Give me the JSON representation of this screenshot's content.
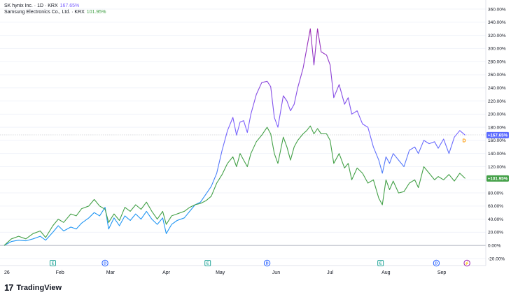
{
  "legend": {
    "sk_name": "SK hynix Inc. · 1D · KRX",
    "sk_value": "167.65%",
    "ss_name": "Samsung Electronics Co., Ltd. · KRX",
    "ss_value": "101.95%"
  },
  "brand": {
    "logo": "17",
    "name": "TradingView"
  },
  "colors": {
    "sk_top": "#9c27b0",
    "sk_bottom": "#2196f3",
    "samsung": "#43a047",
    "grid": "#f0f3fa"
  },
  "chart_data": {
    "type": "line",
    "x_labels": [
      {
        "label": "26",
        "day": 0
      },
      {
        "label": "Feb",
        "day": 31
      },
      {
        "label": "Mar",
        "day": 59
      },
      {
        "label": "Apr",
        "day": 90
      },
      {
        "label": "May",
        "day": 120
      },
      {
        "label": "Jun",
        "day": 151
      },
      {
        "label": "Jul",
        "day": 181
      },
      {
        "label": "Aug",
        "day": 212
      },
      {
        "label": "Sep",
        "day": 243
      }
    ],
    "events": [
      {
        "icon": "earnings-icon",
        "letter": "E",
        "day": 27,
        "color": "#26a69a"
      },
      {
        "icon": "dividend-icon",
        "letter": "D",
        "day": 56,
        "color": "#2962ff"
      },
      {
        "icon": "earnings-icon",
        "letter": "E",
        "day": 113,
        "color": "#26a69a"
      },
      {
        "icon": "dividend-icon",
        "letter": "D",
        "day": 146,
        "color": "#2962ff"
      },
      {
        "icon": "earnings-icon",
        "letter": "E",
        "day": 209,
        "color": "#26a69a"
      },
      {
        "icon": "dividend-icon",
        "letter": "D",
        "day": 240,
        "color": "#2962ff"
      },
      {
        "icon": "split-icon",
        "letter": "⚡",
        "day": 257,
        "color": "#9c27b0"
      }
    ],
    "y_ticks": [
      "360.00%",
      "340.00%",
      "320.00%",
      "300.00%",
      "280.00%",
      "260.00%",
      "240.00%",
      "220.00%",
      "200.00%",
      "180.00%",
      "160.00%",
      "140.00%",
      "120.00%",
      "100.00%",
      "80.00%",
      "60.00%",
      "40.00%",
      "20.00%",
      "0.00%",
      "-20.00%"
    ],
    "ylim": [
      -20,
      360
    ],
    "xlim": [
      0,
      262
    ],
    "series": [
      {
        "name": "SK hynix Inc. · 1D · KRX",
        "last_label": "+167.65%",
        "points": [
          [
            0,
            0
          ],
          [
            4,
            6
          ],
          [
            8,
            8
          ],
          [
            12,
            7
          ],
          [
            16,
            10
          ],
          [
            20,
            14
          ],
          [
            23,
            8
          ],
          [
            27,
            20
          ],
          [
            30,
            30
          ],
          [
            33,
            22
          ],
          [
            37,
            28
          ],
          [
            40,
            25
          ],
          [
            43,
            34
          ],
          [
            47,
            42
          ],
          [
            50,
            50
          ],
          [
            53,
            45
          ],
          [
            56,
            58
          ],
          [
            58,
            25
          ],
          [
            61,
            42
          ],
          [
            64,
            30
          ],
          [
            67,
            45
          ],
          [
            70,
            38
          ],
          [
            73,
            48
          ],
          [
            76,
            40
          ],
          [
            79,
            52
          ],
          [
            82,
            40
          ],
          [
            85,
            32
          ],
          [
            88,
            42
          ],
          [
            90,
            18
          ],
          [
            93,
            32
          ],
          [
            96,
            38
          ],
          [
            100,
            42
          ],
          [
            103,
            52
          ],
          [
            106,
            62
          ],
          [
            109,
            66
          ],
          [
            112,
            78
          ],
          [
            115,
            90
          ],
          [
            118,
            110
          ],
          [
            121,
            145
          ],
          [
            124,
            175
          ],
          [
            127,
            195
          ],
          [
            129,
            168
          ],
          [
            131,
            188
          ],
          [
            133,
            190
          ],
          [
            135,
            172
          ],
          [
            137,
            200
          ],
          [
            140,
            230
          ],
          [
            143,
            248
          ],
          [
            146,
            250
          ],
          [
            148,
            242
          ],
          [
            150,
            195
          ],
          [
            152,
            180
          ],
          [
            155,
            228
          ],
          [
            157,
            220
          ],
          [
            159,
            205
          ],
          [
            161,
            215
          ],
          [
            163,
            240
          ],
          [
            166,
            270
          ],
          [
            168,
            300
          ],
          [
            170,
            330
          ],
          [
            172,
            275
          ],
          [
            174,
            330
          ],
          [
            176,
            295
          ],
          [
            179,
            290
          ],
          [
            181,
            275
          ],
          [
            183,
            225
          ],
          [
            186,
            245
          ],
          [
            189,
            215
          ],
          [
            191,
            225
          ],
          [
            193,
            200
          ],
          [
            196,
            205
          ],
          [
            199,
            185
          ],
          [
            202,
            180
          ],
          [
            205,
            150
          ],
          [
            208,
            130
          ],
          [
            210,
            110
          ],
          [
            212,
            135
          ],
          [
            214,
            125
          ],
          [
            216,
            140
          ],
          [
            219,
            130
          ],
          [
            222,
            120
          ],
          [
            225,
            145
          ],
          [
            228,
            150
          ],
          [
            230,
            140
          ],
          [
            233,
            160
          ],
          [
            236,
            155
          ],
          [
            239,
            158
          ],
          [
            241,
            148
          ],
          [
            244,
            162
          ],
          [
            247,
            140
          ],
          [
            250,
            165
          ],
          [
            253,
            175
          ],
          [
            256,
            168
          ]
        ]
      },
      {
        "name": "Samsung Electronics Co., Ltd. · KRX",
        "last_label": "+101.95%",
        "points": [
          [
            0,
            0
          ],
          [
            4,
            10
          ],
          [
            8,
            14
          ],
          [
            12,
            10
          ],
          [
            16,
            18
          ],
          [
            20,
            22
          ],
          [
            23,
            12
          ],
          [
            27,
            30
          ],
          [
            30,
            40
          ],
          [
            33,
            35
          ],
          [
            37,
            48
          ],
          [
            40,
            45
          ],
          [
            43,
            56
          ],
          [
            47,
            60
          ],
          [
            50,
            70
          ],
          [
            53,
            60
          ],
          [
            56,
            55
          ],
          [
            58,
            35
          ],
          [
            61,
            48
          ],
          [
            64,
            38
          ],
          [
            67,
            58
          ],
          [
            70,
            52
          ],
          [
            73,
            62
          ],
          [
            76,
            55
          ],
          [
            79,
            66
          ],
          [
            82,
            52
          ],
          [
            85,
            40
          ],
          [
            88,
            52
          ],
          [
            90,
            32
          ],
          [
            93,
            45
          ],
          [
            96,
            48
          ],
          [
            100,
            52
          ],
          [
            103,
            58
          ],
          [
            106,
            62
          ],
          [
            109,
            64
          ],
          [
            112,
            68
          ],
          [
            115,
            75
          ],
          [
            118,
            95
          ],
          [
            121,
            108
          ],
          [
            124,
            125
          ],
          [
            127,
            135
          ],
          [
            129,
            120
          ],
          [
            131,
            140
          ],
          [
            133,
            130
          ],
          [
            135,
            120
          ],
          [
            137,
            140
          ],
          [
            140,
            158
          ],
          [
            143,
            168
          ],
          [
            146,
            180
          ],
          [
            148,
            170
          ],
          [
            150,
            140
          ],
          [
            152,
            125
          ],
          [
            155,
            165
          ],
          [
            157,
            150
          ],
          [
            159,
            130
          ],
          [
            161,
            150
          ],
          [
            163,
            160
          ],
          [
            166,
            170
          ],
          [
            168,
            175
          ],
          [
            170,
            182
          ],
          [
            172,
            170
          ],
          [
            174,
            178
          ],
          [
            176,
            170
          ],
          [
            179,
            170
          ],
          [
            181,
            160
          ],
          [
            183,
            125
          ],
          [
            186,
            140
          ],
          [
            189,
            118
          ],
          [
            191,
            125
          ],
          [
            193,
            100
          ],
          [
            196,
            118
          ],
          [
            199,
            110
          ],
          [
            202,
            95
          ],
          [
            205,
            100
          ],
          [
            208,
            72
          ],
          [
            210,
            62
          ],
          [
            212,
            100
          ],
          [
            214,
            85
          ],
          [
            216,
            98
          ],
          [
            219,
            80
          ],
          [
            222,
            82
          ],
          [
            225,
            95
          ],
          [
            228,
            100
          ],
          [
            230,
            88
          ],
          [
            233,
            120
          ],
          [
            236,
            110
          ],
          [
            239,
            100
          ],
          [
            241,
            105
          ],
          [
            244,
            100
          ],
          [
            247,
            108
          ],
          [
            250,
            98
          ],
          [
            253,
            110
          ],
          [
            256,
            102
          ]
        ]
      }
    ]
  }
}
